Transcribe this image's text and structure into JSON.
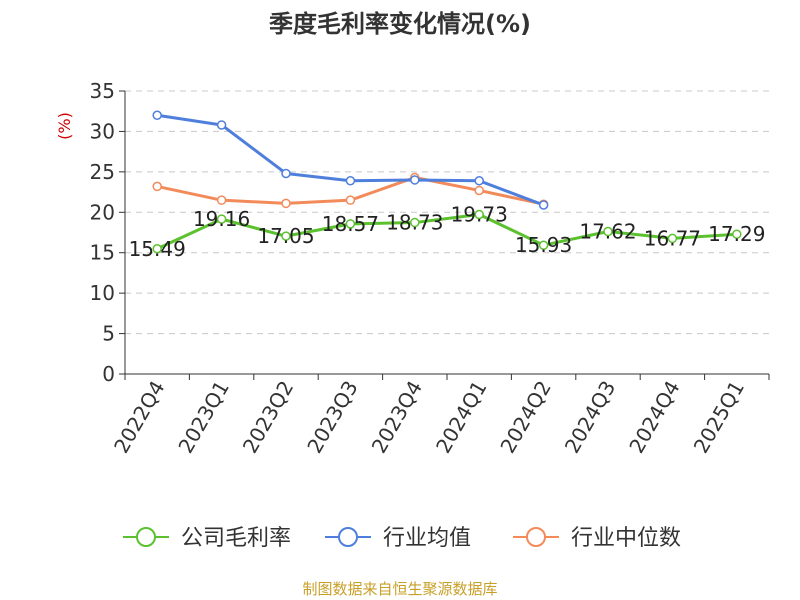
{
  "title": "季度毛利率变化情况(%)",
  "source": "制图数据来自恒生聚源数据库",
  "chart_data": {
    "type": "line",
    "ylabel": "(%)",
    "ylim": [
      0,
      35
    ],
    "yticks": [
      0,
      5,
      10,
      15,
      20,
      25,
      30,
      35
    ],
    "grid": true,
    "legend_position": "bottom",
    "categories": [
      "2022Q4",
      "2023Q1",
      "2023Q2",
      "2023Q3",
      "2023Q4",
      "2024Q1",
      "2024Q2",
      "2024Q3",
      "2024Q4",
      "2025Q1"
    ],
    "series": [
      {
        "name": "公司毛利率",
        "color": "#5bc12f",
        "values": [
          15.49,
          19.16,
          17.05,
          18.57,
          18.73,
          19.73,
          15.93,
          17.62,
          16.77,
          17.29
        ],
        "labels": [
          "15.49",
          "19.16",
          "17.05",
          "18.57",
          "18.73",
          "19.73",
          "15.93",
          "17.62",
          "16.77",
          "17.29"
        ]
      },
      {
        "name": "行业均值",
        "color": "#4f7fdc",
        "values": [
          32.0,
          30.8,
          24.8,
          23.9,
          24.0,
          23.9,
          20.9,
          null,
          null,
          null
        ]
      },
      {
        "name": "行业中位数",
        "color": "#f28a5a",
        "values": [
          23.2,
          21.5,
          21.1,
          21.5,
          24.3,
          22.7,
          21.0,
          null,
          null,
          null
        ]
      }
    ]
  }
}
